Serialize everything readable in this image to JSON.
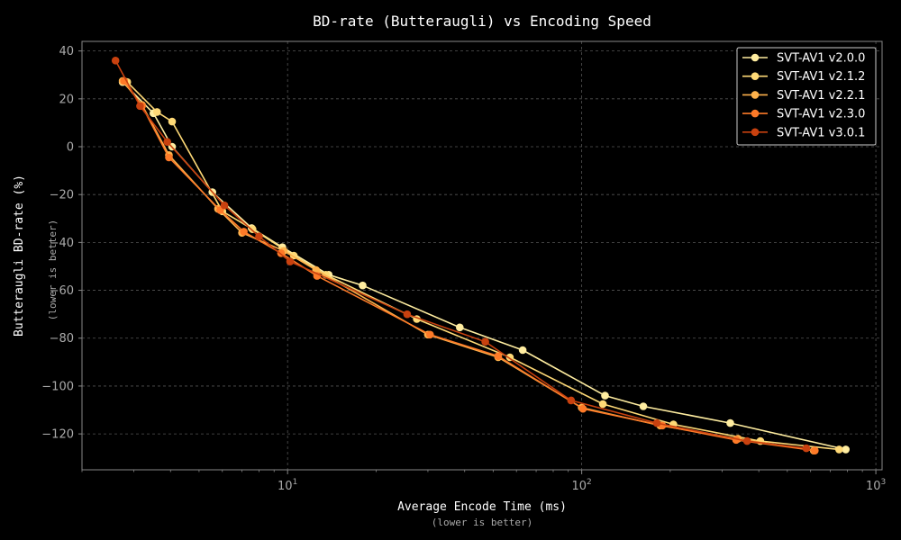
{
  "chart_data": {
    "type": "line",
    "title": "BD-rate (Butteraugli) vs Encoding Speed",
    "xlabel": "Average Encode Time (ms)",
    "xlabel_note": "(lower is better)",
    "ylabel": "Butteraugli BD-rate (%)",
    "ylabel_note": "(lower is better)",
    "x_scale": "log",
    "xlim": [
      2.0,
      1050
    ],
    "ylim": [
      -135,
      44
    ],
    "x_ticks": [
      10,
      100,
      1000
    ],
    "x_tick_labels": [
      {
        "base": "10",
        "exp": "1"
      },
      {
        "base": "10",
        "exp": "2"
      },
      {
        "base": "10",
        "exp": "3"
      }
    ],
    "y_ticks": [
      40,
      20,
      0,
      -20,
      -40,
      -60,
      -80,
      -100,
      -120
    ],
    "y_tick_labels": [
      "40",
      "20",
      "0",
      "−20",
      "−40",
      "−60",
      "−80",
      "−100",
      "−120"
    ],
    "grid": true,
    "legend_position": "top-right",
    "series": [
      {
        "name": "SVT-AV1 v2.0.0",
        "color": "#ffeda0",
        "x": [
          2.75,
          3.5,
          4.05,
          5.55,
          7.55,
          9.6,
          13.8,
          18.0,
          38.5,
          63,
          120,
          162,
          320,
          790
        ],
        "y": [
          27,
          14,
          0,
          -19,
          -34,
          -42,
          -53.5,
          -58,
          -75.5,
          -85,
          -104,
          -108.5,
          -115.5,
          -126.5
        ]
      },
      {
        "name": "SVT-AV1 v2.1.2",
        "color": "#fed976",
        "x": [
          2.85,
          3.6,
          4.05,
          6.0,
          7.6,
          10.5,
          13.5,
          27.5,
          57,
          118,
          205,
          405,
          750
        ],
        "y": [
          27,
          14.5,
          10.5,
          -27,
          -34.5,
          -45.5,
          -53.5,
          -72,
          -88,
          -107.5,
          -116,
          -123,
          -126.5
        ]
      },
      {
        "name": "SVT-AV1 v2.2.1",
        "color": "#feb24c",
        "x": [
          2.75,
          3.2,
          3.95,
          5.8,
          7.0,
          9.7,
          12.5,
          30.0,
          52,
          100,
          185,
          340,
          615
        ],
        "y": [
          27.5,
          17.5,
          -3.5,
          -26,
          -36,
          -43.5,
          -51.5,
          -78.5,
          -88,
          -109,
          -116.5,
          -122,
          -127
        ]
      },
      {
        "name": "SVT-AV1 v2.3.0",
        "color": "#fd7a28",
        "x": [
          2.78,
          3.2,
          3.95,
          5.9,
          7.1,
          9.5,
          12.6,
          30.5,
          52,
          101,
          188,
          335,
          620
        ],
        "y": [
          27.5,
          17,
          -4.5,
          -26.5,
          -35.5,
          -44.5,
          -54,
          -78.5,
          -87.5,
          -109.5,
          -116.5,
          -122.5,
          -127
        ]
      },
      {
        "name": "SVT-AV1 v3.0.1",
        "color": "#c8410f",
        "x": [
          2.6,
          3.15,
          3.9,
          6.1,
          8.0,
          10.2,
          25.5,
          47,
          92,
          180,
          365,
          580
        ],
        "y": [
          36,
          17,
          2,
          -24.5,
          -37.5,
          -48,
          -70,
          -81.5,
          -106,
          -115.5,
          -123,
          -126
        ]
      }
    ]
  }
}
